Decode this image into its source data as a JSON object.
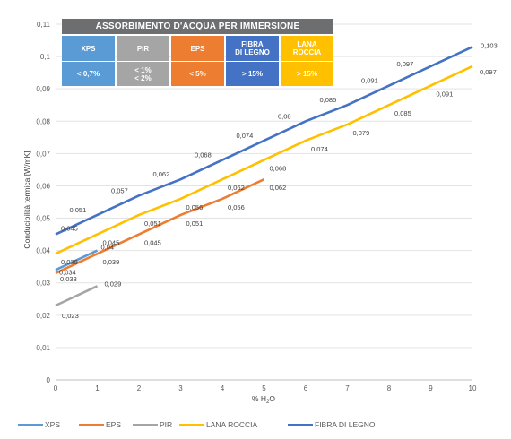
{
  "overlay": {
    "title": "ASSORBIMENTO D'ACQUA PER IMMERSIONE",
    "columns": [
      {
        "name": "XPS",
        "value": "< 0,7%",
        "color": "#5b9bd5"
      },
      {
        "name": "PIR",
        "value": "< 1%\n< 2%",
        "color": "#a5a5a5"
      },
      {
        "name": "EPS",
        "value": "< 5%",
        "color": "#ed7d31"
      },
      {
        "name": "FIBRA\nDI LEGNO",
        "value": "> 15%",
        "color": "#4472c4"
      },
      {
        "name": "LANA\nROCCIA",
        "value": "> 15%",
        "color": "#ffc000"
      }
    ]
  },
  "chart_data": {
    "type": "line",
    "title": "",
    "xlabel": "% H₂O",
    "ylabel": "Conducibilità termica [W/mK]",
    "xlim": [
      0,
      10
    ],
    "ylim": [
      0,
      0.11
    ],
    "xticks": [
      "0",
      "1",
      "2",
      "3",
      "4",
      "5",
      "6",
      "7",
      "8",
      "9",
      "10"
    ],
    "yticks": [
      "0",
      "0,01",
      "0,02",
      "0,03",
      "0,04",
      "0,05",
      "0,06",
      "0,07",
      "0,08",
      "0,09",
      "0,1",
      "0,11"
    ],
    "grid": "horizontal",
    "legend_position": "bottom",
    "series": [
      {
        "name": "XPS",
        "color": "#5b9bd5",
        "x": [
          0,
          1
        ],
        "y": [
          0.034,
          0.04
        ],
        "labels": [
          "0,034",
          "0,04"
        ]
      },
      {
        "name": "EPS",
        "color": "#ed7d31",
        "x": [
          0,
          1,
          2,
          3,
          4,
          5
        ],
        "y": [
          0.033,
          0.039,
          0.045,
          0.051,
          0.056,
          0.062
        ],
        "labels": [
          "0,033",
          "0,039",
          "0,045",
          "0,051",
          "0,056",
          "0,062"
        ]
      },
      {
        "name": "PIR",
        "color": "#a5a5a5",
        "x": [
          0,
          1
        ],
        "y": [
          0.023,
          0.029
        ],
        "labels": [
          "0,023",
          "0,029"
        ]
      },
      {
        "name": "LANA ROCCIA",
        "color": "#ffc000",
        "x": [
          0,
          1,
          2,
          3,
          4,
          5,
          6,
          7,
          8,
          9,
          10
        ],
        "y": [
          0.039,
          0.045,
          0.051,
          0.056,
          0.062,
          0.068,
          0.074,
          0.079,
          0.085,
          0.091,
          0.097
        ],
        "labels": [
          "0,039",
          "0,045",
          "0,051",
          "0,056",
          "0,062",
          "0,068",
          "0,074",
          "0,079",
          "0,085",
          "0,091",
          "0,097"
        ]
      },
      {
        "name": "FIBRA DI LEGNO",
        "color": "#4472c4",
        "x": [
          0,
          1,
          2,
          3,
          4,
          5,
          6,
          7,
          8,
          9,
          10
        ],
        "y": [
          0.045,
          0.051,
          0.057,
          0.062,
          0.068,
          0.074,
          0.08,
          0.085,
          0.091,
          0.097,
          0.103
        ],
        "labels": [
          "0,045",
          "0,051",
          "0,057",
          "0,062",
          "0,068",
          "0,074",
          "0,08",
          "0,085",
          "0,091",
          "0,097",
          "0,103"
        ]
      }
    ]
  }
}
